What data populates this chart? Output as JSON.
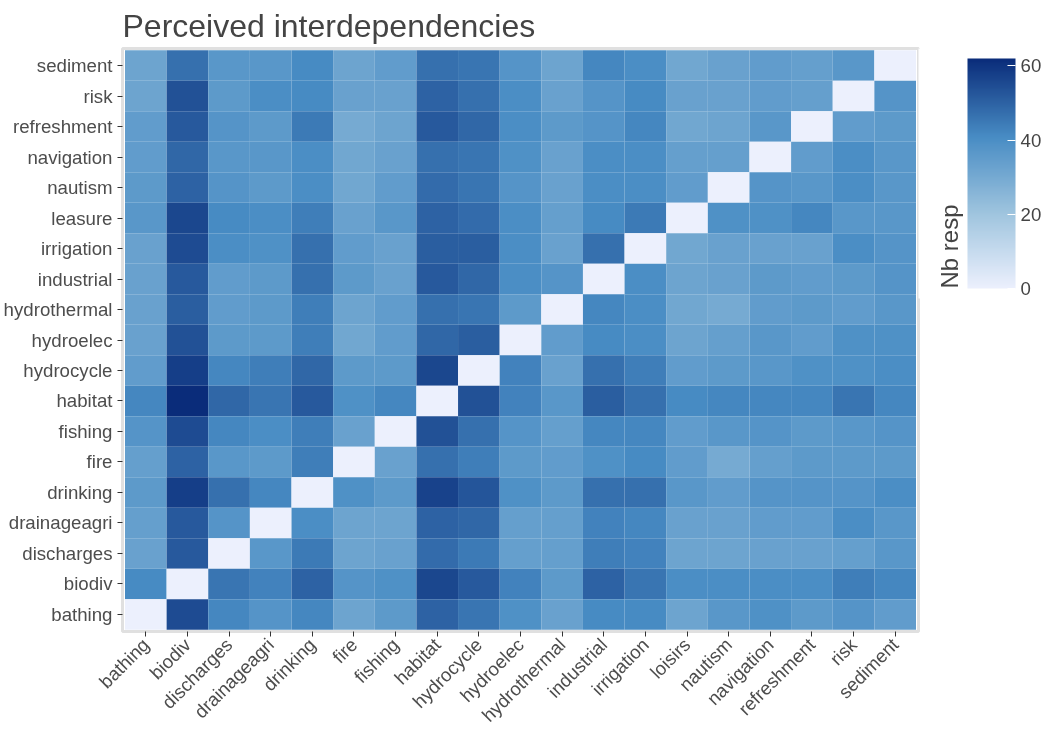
{
  "chart_data": {
    "type": "heatmap",
    "title": "Perceived interdependencies",
    "legend_title": "Nb resp",
    "categories": [
      "bathing",
      "biodiv",
      "discharges",
      "drainageagri",
      "drinking",
      "fire",
      "fishing",
      "habitat",
      "hydrocycle",
      "hydroelec",
      "hydrothermal",
      "industrial",
      "irrigation",
      "loisirs",
      "nautism",
      "navigation",
      "refreshment",
      "risk",
      "sediment"
    ],
    "y_categories": [
      "sediment",
      "risk",
      "refreshment",
      "navigation",
      "nautism",
      "leasure",
      "irrigation",
      "industrial",
      "hydrothermal",
      "hydroelec",
      "hydrocycle",
      "habitat",
      "fishing",
      "fire",
      "drinking",
      "drainageagri",
      "discharges",
      "biodiv",
      "bathing"
    ],
    "cells": [
      [
        32,
        47,
        37,
        37,
        41,
        32,
        35,
        47,
        46,
        38,
        32,
        42,
        40,
        31,
        33,
        35,
        34,
        37,
        0
      ],
      [
        32,
        54,
        36,
        40,
        41,
        33,
        33,
        50,
        47,
        40,
        33,
        38,
        41,
        33,
        33,
        35,
        34,
        0,
        38
      ],
      [
        35,
        52,
        38,
        36,
        45,
        30,
        32,
        52,
        49,
        40,
        36,
        38,
        42,
        31,
        32,
        37,
        0,
        35,
        36
      ],
      [
        35,
        49,
        37,
        37,
        40,
        31,
        33,
        47,
        46,
        39,
        33,
        40,
        40,
        34,
        34,
        0,
        35,
        40,
        37
      ],
      [
        36,
        50,
        38,
        36,
        40,
        31,
        35,
        48,
        46,
        38,
        33,
        40,
        40,
        35,
        0,
        38,
        37,
        40,
        37
      ],
      [
        37,
        56,
        41,
        40,
        44,
        33,
        37,
        50,
        48,
        40,
        34,
        41,
        45,
        0,
        39,
        39,
        42,
        37,
        37
      ],
      [
        33,
        55,
        40,
        39,
        47,
        35,
        33,
        51,
        51,
        40,
        33,
        47,
        0,
        31,
        33,
        33,
        33,
        40,
        38
      ],
      [
        33,
        52,
        35,
        36,
        47,
        36,
        33,
        52,
        49,
        40,
        38,
        0,
        40,
        32,
        33,
        36,
        35,
        36,
        38
      ],
      [
        33,
        51,
        35,
        36,
        44,
        32,
        35,
        47,
        46,
        36,
        0,
        42,
        40,
        31,
        30,
        35,
        36,
        35,
        37
      ],
      [
        33,
        54,
        36,
        36,
        44,
        31,
        35,
        49,
        51,
        0,
        35,
        41,
        40,
        32,
        34,
        37,
        35,
        39,
        39
      ],
      [
        35,
        58,
        42,
        44,
        49,
        36,
        36,
        56,
        0,
        43,
        33,
        47,
        44,
        35,
        36,
        37,
        39,
        39,
        40
      ],
      [
        42,
        62,
        49,
        46,
        52,
        39,
        42,
        0,
        54,
        43,
        37,
        51,
        47,
        41,
        42,
        42,
        42,
        46,
        42
      ],
      [
        38,
        55,
        42,
        40,
        44,
        33,
        0,
        54,
        47,
        38,
        34,
        42,
        42,
        35,
        37,
        38,
        36,
        37,
        38
      ],
      [
        34,
        50,
        37,
        36,
        44,
        0,
        33,
        47,
        44,
        36,
        35,
        39,
        41,
        35,
        30,
        34,
        36,
        36,
        36
      ],
      [
        36,
        58,
        47,
        42,
        0,
        39,
        36,
        57,
        53,
        39,
        36,
        47,
        47,
        37,
        35,
        38,
        38,
        38,
        40
      ],
      [
        34,
        52,
        38,
        0,
        40,
        32,
        32,
        50,
        49,
        34,
        34,
        43,
        42,
        33,
        33,
        35,
        35,
        40,
        37
      ],
      [
        33,
        52,
        0,
        37,
        45,
        32,
        33,
        48,
        45,
        34,
        34,
        44,
        43,
        32,
        32,
        33,
        33,
        34,
        37
      ],
      [
        41,
        0,
        46,
        43,
        50,
        38,
        39,
        56,
        52,
        43,
        36,
        50,
        46,
        40,
        40,
        40,
        40,
        44,
        42
      ],
      [
        0,
        55,
        42,
        38,
        42,
        32,
        36,
        50,
        46,
        39,
        33,
        41,
        41,
        32,
        37,
        39,
        36,
        38,
        35
      ]
    ],
    "clim": [
      0,
      62
    ],
    "cticks": [
      0,
      20,
      40,
      60
    ]
  }
}
